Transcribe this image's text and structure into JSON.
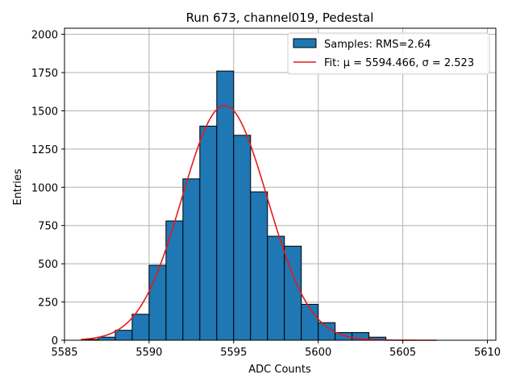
{
  "chart_data": {
    "type": "bar",
    "title": "Run 673, channel019, Pedestal",
    "xlabel": "ADC Counts",
    "ylabel": "Entries",
    "xlim": [
      5585,
      5610.5
    ],
    "ylim": [
      0,
      2040
    ],
    "x_ticks": [
      5585,
      5590,
      5595,
      5600,
      5605,
      5610
    ],
    "y_ticks": [
      0,
      250,
      500,
      750,
      1000,
      1250,
      1500,
      1750,
      2000
    ],
    "grid": true,
    "legend_position": "top-right",
    "bin_edges": [
      5586,
      5587,
      5588,
      5589,
      5590,
      5591,
      5592,
      5593,
      5594,
      5595,
      5596,
      5597,
      5598,
      5599,
      5600,
      5601,
      5602,
      5603,
      5604,
      5605,
      5606,
      5607
    ],
    "counts": [
      5,
      20,
      65,
      170,
      490,
      780,
      1055,
      1400,
      1760,
      1340,
      970,
      680,
      615,
      235,
      115,
      50,
      50,
      20,
      0,
      0,
      0
    ],
    "histogram_color": "#1f77b4",
    "fit": {
      "mu": 5594.466,
      "sigma": 2.523,
      "amplitude": 1535,
      "x_range": [
        5586,
        5607
      ],
      "color": "#e41a1c"
    },
    "legend": [
      {
        "label": "Samples: RMS=2.64",
        "kind": "patch"
      },
      {
        "label": "Fit: μ = 5594.466, σ = 2.523",
        "kind": "line"
      }
    ]
  }
}
